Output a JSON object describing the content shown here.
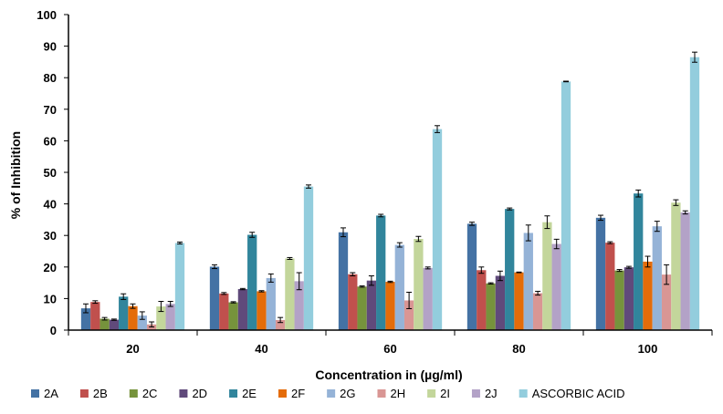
{
  "chart_data": {
    "type": "bar",
    "title": "",
    "xlabel": "Concentration in (µg/ml)",
    "ylabel": "% of Inhibition",
    "ylim": [
      0,
      100
    ],
    "yticks": [
      0,
      10,
      20,
      30,
      40,
      50,
      60,
      70,
      80,
      90,
      100
    ],
    "categories": [
      "20",
      "40",
      "60",
      "80",
      "100"
    ],
    "legend_position": "bottom",
    "series": [
      {
        "name": "2A",
        "color": "#4472a4",
        "values": [
          6.9,
          20.1,
          31.0,
          33.7,
          35.6
        ],
        "errors": [
          1.4,
          0.6,
          1.4,
          0.5,
          0.8
        ]
      },
      {
        "name": "2B",
        "color": "#c0504d",
        "values": [
          8.9,
          11.6,
          17.7,
          19.0,
          27.7
        ],
        "errors": [
          0.4,
          0.3,
          0.5,
          1.0,
          0.3
        ]
      },
      {
        "name": "2C",
        "color": "#76933c",
        "values": [
          3.6,
          8.8,
          13.8,
          14.8,
          18.9
        ],
        "errors": [
          0.4,
          0.2,
          0.2,
          0.2,
          0.3
        ]
      },
      {
        "name": "2D",
        "color": "#604a7b",
        "values": [
          3.3,
          13.0,
          15.7,
          17.2,
          19.9
        ],
        "errors": [
          0.2,
          0.2,
          1.5,
          1.5,
          0.3
        ]
      },
      {
        "name": "2E",
        "color": "#31859c",
        "values": [
          10.6,
          30.2,
          36.3,
          38.4,
          43.3
        ],
        "errors": [
          0.9,
          0.8,
          0.4,
          0.3,
          1.1
        ]
      },
      {
        "name": "2F",
        "color": "#e46c0a",
        "values": [
          7.6,
          12.3,
          15.3,
          18.3,
          21.7
        ],
        "errors": [
          0.7,
          0.2,
          0.2,
          0.1,
          1.7
        ]
      },
      {
        "name": "2G",
        "color": "#95b3d7",
        "values": [
          4.6,
          16.5,
          27.0,
          30.8,
          32.9
        ],
        "errors": [
          1.2,
          1.3,
          0.7,
          2.5,
          1.6
        ]
      },
      {
        "name": "2H",
        "color": "#d99694",
        "values": [
          1.8,
          3.2,
          9.4,
          11.7,
          17.6
        ],
        "errors": [
          0.8,
          0.8,
          2.6,
          0.6,
          3.1
        ]
      },
      {
        "name": "2I",
        "color": "#c3d69b",
        "values": [
          7.5,
          22.7,
          28.9,
          34.2,
          40.4
        ],
        "errors": [
          1.6,
          0.3,
          0.8,
          2.0,
          0.9
        ]
      },
      {
        "name": "2J",
        "color": "#b3a2c7",
        "values": [
          8.3,
          15.5,
          19.7,
          27.3,
          37.3
        ],
        "errors": [
          0.8,
          2.7,
          0.3,
          1.5,
          0.5
        ]
      },
      {
        "name": "ASCORBIC ACID",
        "color": "#93cddd",
        "values": [
          27.6,
          45.5,
          63.7,
          78.8,
          86.5
        ],
        "errors": [
          0.3,
          0.5,
          1.1,
          0.1,
          1.6
        ]
      }
    ]
  }
}
